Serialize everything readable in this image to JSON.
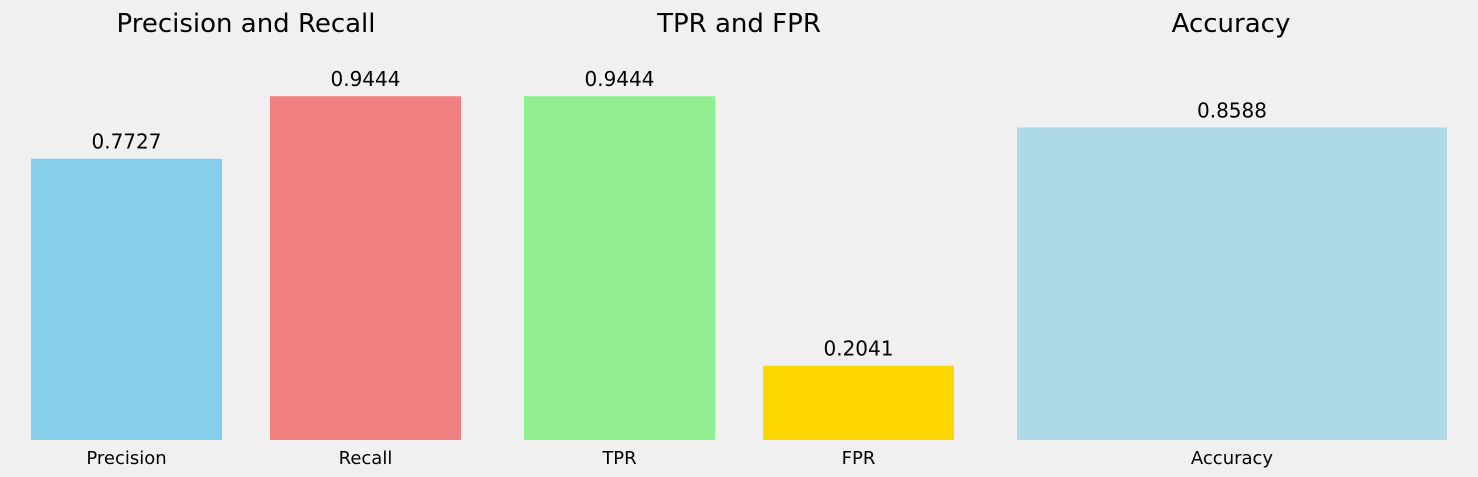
{
  "chart_data": [
    {
      "type": "bar",
      "title": "Precision and Recall",
      "categories": [
        "Precision",
        "Recall"
      ],
      "values": [
        0.7727,
        0.9444
      ],
      "value_labels": [
        "0.7727",
        "0.9444"
      ],
      "colors": [
        "#87ceeb",
        "#f08080"
      ],
      "xlabel": "",
      "ylabel": "",
      "ylim": [
        0,
        1.0
      ],
      "grid": false
    },
    {
      "type": "bar",
      "title": "TPR and FPR",
      "categories": [
        "TPR",
        "FPR"
      ],
      "values": [
        0.9444,
        0.2041
      ],
      "value_labels": [
        "0.9444",
        "0.2041"
      ],
      "colors": [
        "#90ee90",
        "#ffd700"
      ],
      "xlabel": "",
      "ylabel": "",
      "ylim": [
        0,
        1.0
      ],
      "grid": false
    },
    {
      "type": "bar",
      "title": "Accuracy",
      "categories": [
        "Accuracy"
      ],
      "values": [
        0.8588
      ],
      "value_labels": [
        "0.8588"
      ],
      "colors": [
        "#add8e6"
      ],
      "xlabel": "",
      "ylabel": "",
      "ylim": [
        0,
        1.0
      ],
      "grid": false
    }
  ]
}
